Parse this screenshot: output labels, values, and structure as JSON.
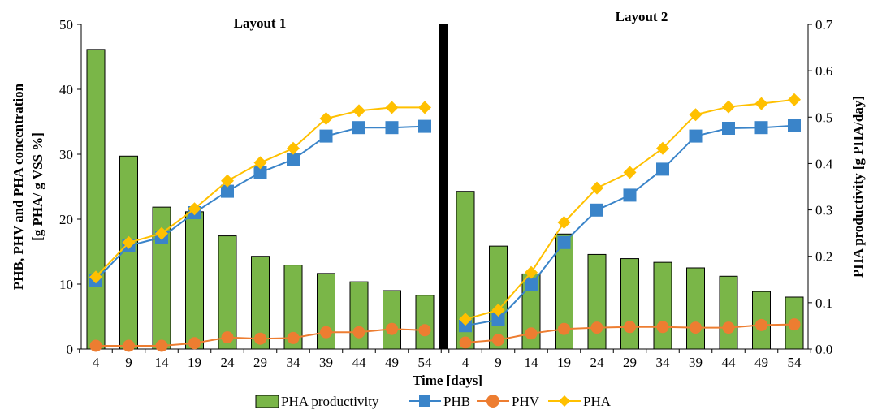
{
  "chart_data": {
    "type": "bar+line",
    "panels": [
      "Layout 1",
      "Layout 2"
    ],
    "categories": [
      "4",
      "9",
      "14",
      "19",
      "24",
      "29",
      "34",
      "39",
      "44",
      "49",
      "54"
    ],
    "xlabel": "Time [days]",
    "ylabel_left_line1": "PHB, PHV and PHA concentration",
    "ylabel_left_line2": "[g PHA/ g VSS %]",
    "ylabel_right": "PHA productivity [g PHA/day]",
    "ylim_left": [
      0,
      50
    ],
    "yticks_left": [
      "0",
      "10",
      "20",
      "30",
      "40",
      "50"
    ],
    "ylim_right": [
      0,
      0.7
    ],
    "yticks_right": [
      "0.0",
      "0.1",
      "0.2",
      "0.3",
      "0.4",
      "0.5",
      "0.6",
      "0.7"
    ],
    "legend_position": "bottom",
    "grid": false,
    "series": [
      {
        "name": "PHA productivity",
        "kind": "bar",
        "axis": "right",
        "color": "#7ab648",
        "edge": "#000000",
        "layout1": [
          0.646,
          0.416,
          0.306,
          0.296,
          0.244,
          0.2,
          0.181,
          0.163,
          0.145,
          0.126,
          0.116
        ],
        "layout2": [
          0.34,
          0.222,
          0.162,
          0.248,
          0.204,
          0.195,
          0.187,
          0.175,
          0.157,
          0.124,
          0.112
        ]
      },
      {
        "name": "PHB",
        "kind": "line",
        "marker": "square",
        "axis": "left",
        "color": "#3a84c9",
        "layout1": [
          10.6,
          15.9,
          17.2,
          21.0,
          24.3,
          27.2,
          29.2,
          32.8,
          34.1,
          34.1,
          34.3
        ],
        "layout2": [
          3.6,
          4.5,
          9.9,
          16.4,
          21.4,
          23.7,
          27.7,
          32.8,
          34.0,
          34.1,
          34.4
        ]
      },
      {
        "name": "PHV",
        "kind": "line",
        "marker": "circle",
        "axis": "left",
        "color": "#ed7d31",
        "layout1": [
          0.5,
          0.5,
          0.5,
          0.9,
          1.8,
          1.6,
          1.7,
          2.6,
          2.6,
          3.1,
          2.9
        ],
        "layout2": [
          1.0,
          1.4,
          2.4,
          3.1,
          3.3,
          3.4,
          3.4,
          3.3,
          3.3,
          3.7,
          3.8
        ]
      },
      {
        "name": "PHA",
        "kind": "line",
        "marker": "diamond",
        "axis": "left",
        "color": "#ffc000",
        "layout1": [
          11.1,
          16.4,
          17.8,
          21.6,
          25.9,
          28.7,
          30.9,
          35.5,
          36.7,
          37.2,
          37.2
        ],
        "layout2": [
          4.6,
          6.0,
          11.8,
          19.5,
          24.8,
          27.2,
          30.9,
          36.1,
          37.3,
          37.8,
          38.4
        ]
      }
    ]
  }
}
